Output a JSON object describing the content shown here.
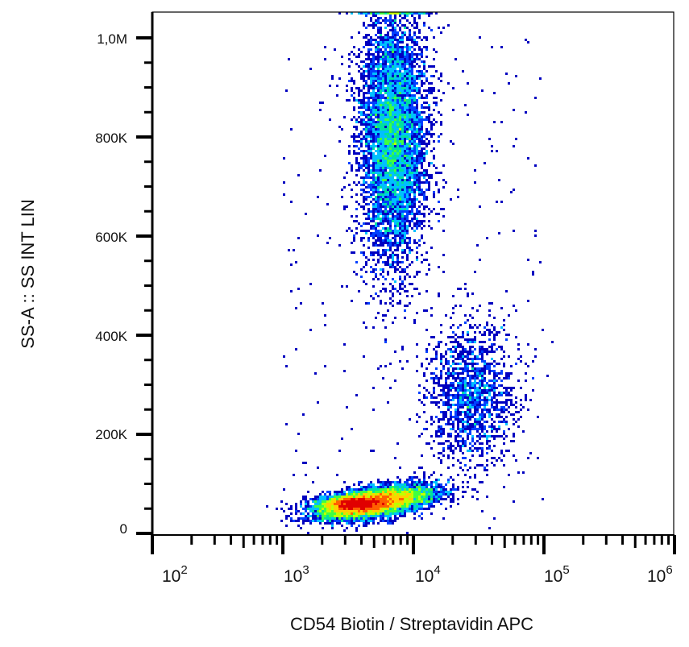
{
  "chart_data": {
    "type": "scatter",
    "subtype": "flow-cytometry-density-dot-plot",
    "xlabel": "CD54 Biotin / Streptavidin APC",
    "ylabel": "SS-A :: SS INT LIN",
    "x_scale": "log",
    "xlim": [
      100,
      1000000
    ],
    "ylim": [
      0,
      1050000
    ],
    "x_ticks": [
      {
        "value": 100,
        "base": "10",
        "exp": "2"
      },
      {
        "value": 1000,
        "base": "10",
        "exp": "3"
      },
      {
        "value": 10000,
        "base": "10",
        "exp": "4"
      },
      {
        "value": 100000,
        "base": "10",
        "exp": "5"
      },
      {
        "value": 1000000,
        "base": "10",
        "exp": "6"
      }
    ],
    "y_ticks": [
      {
        "value": 0,
        "label": "0"
      },
      {
        "value": 200000,
        "label": "200K"
      },
      {
        "value": 400000,
        "label": "400K"
      },
      {
        "value": 600000,
        "label": "600K"
      },
      {
        "value": 800000,
        "label": "800K"
      },
      {
        "value": 1000000,
        "label": "1,0M"
      }
    ],
    "grid": false,
    "legend": "none",
    "density_colormap": [
      "#0000c0",
      "#0040ff",
      "#00c0ff",
      "#00e0a0",
      "#40ff40",
      "#c0ff00",
      "#ffd000",
      "#ff6000",
      "#e00000"
    ],
    "populations": [
      {
        "x_center": 5000,
        "x_log_sd": 0.22,
        "y_center": 62000,
        "y_sd": 14000,
        "y_slope_per_decade": 40000,
        "events": 7000
      },
      {
        "x_center": 3500,
        "x_log_sd": 0.12,
        "y_center": 60000,
        "y_sd": 8000,
        "y_slope_per_decade": 0,
        "events": 2500
      },
      {
        "x_center": 7000,
        "x_log_sd": 0.13,
        "y_center": 800000,
        "y_sd": 130000,
        "y_slope_per_decade": 0,
        "events": 6000
      },
      {
        "x_center": 28000,
        "x_log_sd": 0.17,
        "y_center": 280000,
        "y_sd": 70000,
        "y_slope_per_decade": 0,
        "events": 1500
      }
    ],
    "scattered_events": {
      "x_range": [
        1000,
        100000
      ],
      "y_range": [
        0,
        1000000
      ],
      "events": 300
    }
  }
}
